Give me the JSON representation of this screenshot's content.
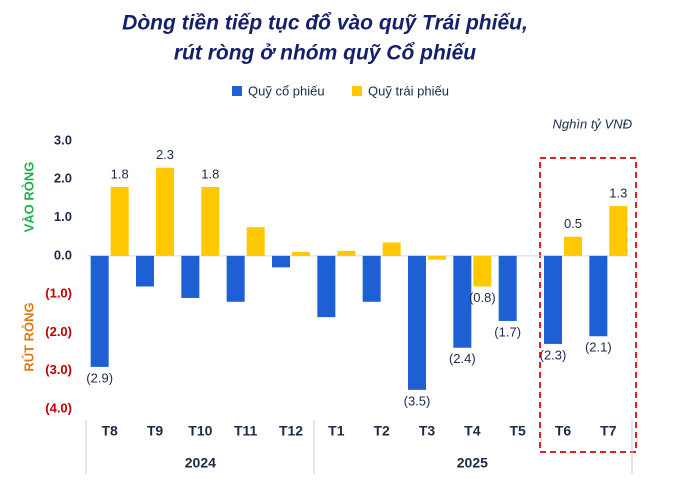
{
  "chart_data": {
    "type": "bar",
    "title": [
      "Dòng tiền tiếp tục đổ vào quỹ Trái phiếu,",
      "rút ròng ở nhóm quỹ Cổ phiếu"
    ],
    "unit": "Nghìn tỷ VNĐ",
    "positive_label": "VÀO RÒNG",
    "negative_label": "RÚT RÒNG",
    "categories": [
      "T8",
      "T9",
      "T10",
      "T11",
      "T12",
      "T1",
      "T2",
      "T3",
      "T4",
      "T5",
      "T6",
      "T7"
    ],
    "year_groups": [
      {
        "label": "2024",
        "from": "T8",
        "to": "T12"
      },
      {
        "label": "2025",
        "from": "T1",
        "to": "T7"
      }
    ],
    "series": [
      {
        "name": "Quỹ cổ phiếu",
        "color": "#1f5fd6",
        "values": [
          -2.9,
          -0.8,
          -1.1,
          -1.2,
          -0.3,
          -1.6,
          -1.2,
          -3.5,
          -2.4,
          -1.7,
          -2.3,
          -2.1
        ],
        "value_labels": [
          "(2.9)",
          null,
          null,
          null,
          null,
          null,
          null,
          "(3.5)",
          "(2.4)",
          "(1.7)",
          "(2.3)",
          "(2.1)"
        ]
      },
      {
        "name": "Quỹ trái phiếu",
        "color": "#ffc800",
        "values": [
          1.8,
          2.3,
          1.8,
          0.75,
          0.1,
          0.13,
          0.35,
          -0.1,
          -0.8,
          0,
          0.5,
          1.3
        ],
        "value_labels": [
          "1.8",
          "2.3",
          "1.8",
          null,
          null,
          null,
          null,
          null,
          "(0.8)",
          null,
          "0.5",
          "1.3"
        ]
      }
    ],
    "ylim": [
      -4,
      3
    ],
    "yticks": [
      {
        "value": 3,
        "label": "3.0"
      },
      {
        "value": 2,
        "label": "2.0"
      },
      {
        "value": 1,
        "label": "1.0"
      },
      {
        "value": 0,
        "label": "0.0"
      },
      {
        "value": -1,
        "label": "(1.0)"
      },
      {
        "value": -2,
        "label": "(2.0)"
      },
      {
        "value": -3,
        "label": "(3.0)"
      },
      {
        "value": -4,
        "label": "(4.0)"
      }
    ],
    "positive_tick_color": "#1a2a4a",
    "negative_tick_color": "#c00000",
    "grid": false
  }
}
